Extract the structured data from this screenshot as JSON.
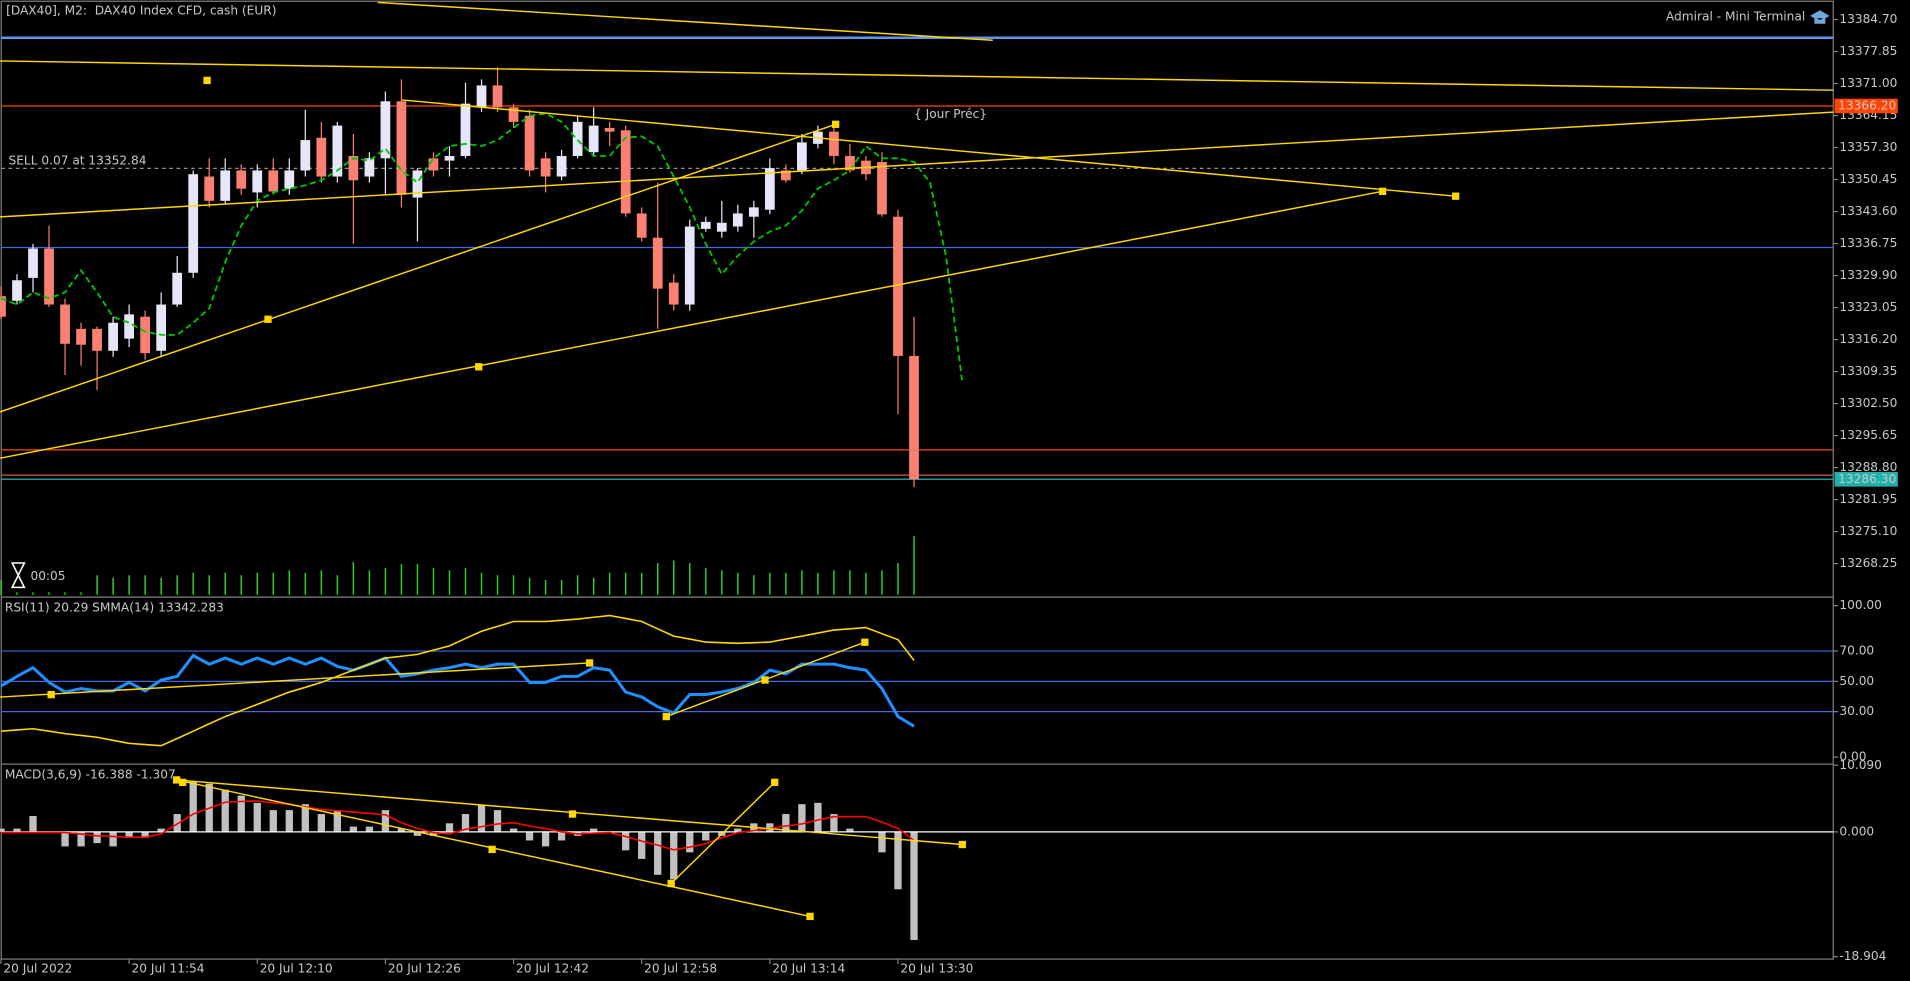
{
  "chart_data": [
    {
      "type": "candlestick",
      "title": "[DAX40], M2:  DAX40 Index CFD, cash (EUR)",
      "subtitle": "Admiral - Mini Terminal",
      "timer": "00:05",
      "categories": [
        "20 Jul 2022",
        null,
        null,
        null,
        null,
        null,
        null,
        null,
        "20 Jul 11:54",
        null,
        null,
        null,
        null,
        null,
        null,
        null,
        "20 Jul 12:10",
        null,
        null,
        null,
        null,
        null,
        null,
        null,
        "20 Jul 12:26",
        null,
        null,
        null,
        null,
        null,
        null,
        null,
        "20 Jul 12:42",
        null,
        null,
        null,
        null,
        null,
        null,
        null,
        "20 Jul 12:58",
        null,
        null,
        null,
        null,
        null,
        null,
        null,
        "20 Jul 13:14",
        null,
        null,
        null,
        null,
        null,
        null,
        null,
        "20 Jul 13:30",
        null,
        null,
        null,
        null
      ],
      "open": [
        13325.5,
        13324.5,
        13329.4,
        13335.7,
        13323.7,
        13318.5,
        13318.5,
        13313.8,
        13316.4,
        13321.1,
        13313.8,
        13323.7,
        13330.5,
        13351.1,
        13345.9,
        13352.4,
        13347.7,
        13352.4,
        13348.5,
        13352.4,
        13359.4,
        13351.1,
        13355.5,
        13351.1,
        13355.0,
        13367.2,
        13346.6,
        13355.0,
        13354.5,
        13355.5,
        13365.9,
        13370.6,
        13365.9,
        13364.1,
        13355.0,
        13351.1,
        13355.5,
        13356.3,
        13361.5,
        13361.0,
        13343.2,
        13338.0,
        13328.4,
        13323.7,
        13339.9,
        13339.3,
        13340.4,
        13342.5,
        13344.0,
        13352.4,
        13352.4,
        13358.1,
        13360.7,
        13355.5,
        13354.5,
        13354.2,
        13342.5,
        13312.7,
        null,
        null,
        null
      ],
      "high": [
        13327.6,
        13330.2,
        13336.7,
        13340.6,
        13325.0,
        13319.8,
        13319.0,
        13321.1,
        13323.7,
        13322.4,
        13326.3,
        13334.1,
        13352.4,
        13355.0,
        13355.0,
        13353.7,
        13353.7,
        13355.0,
        13355.0,
        13365.4,
        13362.8,
        13362.8,
        13360.2,
        13356.3,
        13369.3,
        13371.9,
        13352.9,
        13356.3,
        13357.6,
        13371.2,
        13371.9,
        13374.5,
        13366.7,
        13365.4,
        13356.3,
        13356.8,
        13364.1,
        13365.9,
        13362.8,
        13362.0,
        13344.5,
        13349.8,
        13330.2,
        13341.9,
        13342.5,
        13345.9,
        13345.1,
        13345.9,
        13355.0,
        13353.7,
        13360.2,
        13362.0,
        13362.8,
        13358.1,
        13355.5,
        13356.3,
        13344.0,
        13321.1,
        null,
        null,
        null
      ],
      "low": [
        13320.6,
        13323.7,
        13326.3,
        13323.2,
        13308.6,
        13310.6,
        13305.4,
        13312.5,
        13314.6,
        13311.9,
        13312.7,
        13323.2,
        13329.4,
        13344.5,
        13345.1,
        13347.2,
        13344.5,
        13347.2,
        13347.2,
        13351.1,
        13349.8,
        13349.8,
        13336.7,
        13349.8,
        13347.2,
        13344.5,
        13337.2,
        13351.1,
        13351.1,
        13355.0,
        13364.9,
        13364.9,
        13361.5,
        13351.1,
        13347.7,
        13350.3,
        13355.0,
        13355.5,
        13357.6,
        13342.5,
        13337.2,
        13318.5,
        13322.4,
        13322.4,
        13339.3,
        13338.0,
        13339.3,
        13338.0,
        13343.0,
        13349.8,
        13351.6,
        13357.1,
        13353.7,
        13351.9,
        13350.3,
        13342.5,
        13300.2,
        13284.6,
        null,
        null,
        null
      ],
      "close": [
        13321.1,
        13328.9,
        13335.7,
        13323.7,
        13315.3,
        13315.1,
        13313.8,
        13319.8,
        13321.6,
        13313.3,
        13323.7,
        13330.5,
        13351.6,
        13345.9,
        13352.4,
        13348.5,
        13352.4,
        13347.9,
        13352.4,
        13358.9,
        13351.1,
        13362.0,
        13350.3,
        13355.0,
        13367.2,
        13347.2,
        13352.4,
        13352.4,
        13355.5,
        13366.7,
        13370.6,
        13365.9,
        13362.8,
        13352.4,
        13351.1,
        13355.5,
        13362.8,
        13362.0,
        13360.7,
        13343.2,
        13338.0,
        13327.1,
        13323.7,
        13340.4,
        13341.4,
        13341.2,
        13343.2,
        13344.5,
        13352.9,
        13350.3,
        13358.4,
        13360.7,
        13355.5,
        13352.4,
        13351.6,
        13343.0,
        13312.7,
        13286.3,
        null,
        null,
        null
      ],
      "up_color": "#e6e6fa",
      "down_color": "#fa8072",
      "ma": {
        "color": "#00c800",
        "values": [
          13325.0,
          13323.7,
          13326.3,
          13325.0,
          13326.3,
          13331.0,
          13326.3,
          13321.1,
          13319.8,
          13317.9,
          13317.2,
          13317.2,
          13319.8,
          13322.9,
          13332.8,
          13340.6,
          13345.9,
          13347.7,
          13348.5,
          13349.2,
          13350.3,
          13352.4,
          13355.0,
          13354.5,
          13357.1,
          13352.4,
          13349.8,
          13355.0,
          13357.6,
          13358.1,
          13357.6,
          13358.9,
          13361.5,
          13364.1,
          13364.6,
          13362.8,
          13358.9,
          13355.5,
          13355.5,
          13359.4,
          13359.7,
          13357.6,
          13351.1,
          13344.5,
          13336.7,
          13330.2,
          13334.1,
          13337.2,
          13339.3,
          13340.6,
          13343.8,
          13348.5,
          13350.3,
          13352.4,
          13357.6,
          13355.0,
          13355.0,
          13354.2,
          13349.8,
          13334.1,
          13307.5
        ]
      },
      "volume": {
        "color": "#32cd32",
        "values": [
          12,
          12,
          12,
          12,
          12,
          12,
          16,
          14,
          16,
          16,
          14,
          16,
          18,
          16,
          18,
          16,
          18,
          18,
          20,
          18,
          20,
          16,
          27,
          20,
          22,
          25,
          25,
          22,
          20,
          22,
          18,
          16,
          16,
          14,
          12,
          12,
          16,
          14,
          18,
          18,
          18,
          26,
          28,
          26,
          22,
          20,
          18,
          16,
          18,
          18,
          20,
          18,
          20,
          20,
          18,
          20,
          26,
          48,
          null,
          null,
          null
        ]
      },
      "levels": [
        {
          "value": 13380.8,
          "color": "#6495ed"
        },
        {
          "value": 13366.2,
          "color": "#ff4500",
          "label": "13366.20",
          "name": "{ Jour Préc}"
        },
        {
          "value": 13335.9,
          "color": "#4169e1"
        },
        {
          "value": 13292.6,
          "color": "#ff4500"
        },
        {
          "value": 13287.2,
          "color": "#cd5c5c"
        },
        {
          "value": 13286.3,
          "color": "#20b2aa",
          "label": "13286.30"
        }
      ],
      "order": {
        "value": 13352.84,
        "label": "SELL 0.07 at 13352.84",
        "color": "#909090"
      },
      "ylim": [
        13261.6,
        13388.1
      ],
      "yticks": [
        {
          "value": 13384.7,
          "label": "13384.70"
        },
        13377.85,
        {
          "value": 13371.0,
          "label": "13371.00"
        },
        13364.15,
        {
          "value": 13357.3,
          "label": "13357.30"
        },
        13350.45,
        {
          "value": 13343.6,
          "label": "13343.60"
        },
        13336.75,
        {
          "value": 13329.9,
          "label": "13329.90"
        },
        13323.05,
        {
          "value": 13316.2,
          "label": "13316.20"
        },
        13309.35,
        {
          "value": 13302.5,
          "label": "13302.50"
        },
        13295.65,
        {
          "value": 13288.8,
          "label": "13288.80"
        },
        13281.95,
        {
          "value": 13275.1,
          "label": "13275.10"
        },
        13268.25
      ]
    },
    {
      "type": "line",
      "title": "RSI(11) 20.29 SMMA(14) 13342.283",
      "series": [
        {
          "color": "#1e90ff",
          "values": [
            46.9,
            53.3,
            59.0,
            49.3,
            42.9,
            45.3,
            43.7,
            43.7,
            49.3,
            43.7,
            50.9,
            53.3,
            67.0,
            61.4,
            65.4,
            61.4,
            65.4,
            61.4,
            65.4,
            61.4,
            65.4,
            59.8,
            57.4,
            61.4,
            65.4,
            53.3,
            54.9,
            57.4,
            59.0,
            61.4,
            59.0,
            61.4,
            61.4,
            49.3,
            49.3,
            53.3,
            53.3,
            59.0,
            57.4,
            42.9,
            39.7,
            33.2,
            29.2,
            41.3,
            41.3,
            42.9,
            45.3,
            49.3,
            57.4,
            54.9,
            61.4,
            61.4,
            61.4,
            59.0,
            57.4,
            45.3,
            26.8,
            20.3
          ]
        },
        {
          "color": "#ffd700",
          "values": [
            17.1,
            17.9,
            18.7,
            17.1,
            15.5,
            14.3,
            13.1,
            11.1,
            9.1,
            8.3,
            7.5,
            12.3,
            17.1,
            22.0,
            26.8,
            30.8,
            34.8,
            38.9,
            42.9,
            46.1,
            49.3,
            53.4,
            57.4,
            61.4,
            65.4,
            66.6,
            67.8,
            70.6,
            73.4,
            78.3,
            83.1,
            86.3,
            89.5,
            89.5,
            89.5,
            90.3,
            91.1,
            92.3,
            93.5,
            91.5,
            89.5,
            84.7,
            79.9,
            77.9,
            75.9,
            75.5,
            75.1,
            75.5,
            75.9,
            77.9,
            79.9,
            81.9,
            83.9,
            84.7,
            85.5,
            81.5,
            77.5,
            63.8
          ]
        }
      ],
      "levels": [
        30,
        50,
        70
      ],
      "level_color": "#4169e1",
      "ylim": [
        -3,
        104
      ],
      "yticks": [
        {
          "value": 100,
          "label": "100.00"
        },
        {
          "value": 70,
          "label": "70.00"
        },
        {
          "value": 50,
          "label": "50.00"
        },
        {
          "value": 30,
          "label": "30.00"
        },
        {
          "value": 0,
          "label": "0.00"
        }
      ]
    },
    {
      "type": "macd",
      "title": "MACD(3,6,9) -16.388 -1.307",
      "histogram": {
        "color": "#c0c0c0",
        "values": [
          0.5,
          0.5,
          2.4,
          0,
          -2.2,
          -2.2,
          -1.7,
          -2.2,
          -0.9,
          -0.9,
          0.5,
          2.7,
          7.7,
          7.3,
          6.4,
          5.5,
          4.4,
          3.3,
          3.3,
          4.2,
          2.7,
          3.3,
          0.8,
          0.8,
          3.3,
          0.5,
          -0.6,
          -0.6,
          1.3,
          2.7,
          4.0,
          3.3,
          0.5,
          -1.3,
          -2.2,
          -1.3,
          -0.6,
          0.5,
          0,
          -2.8,
          -4.1,
          -6.5,
          -7.2,
          -3.1,
          -1.3,
          -0.6,
          0.5,
          1.3,
          1.3,
          2.7,
          4.2,
          4.4,
          2.7,
          0.5,
          0,
          -3.1,
          -8.7,
          -16.388
        ]
      },
      "signal": {
        "color": "#ff0000",
        "values": [
          -0.1,
          -0.1,
          -0.1,
          -0.1,
          -0.1,
          -0.3,
          -0.6,
          -0.7,
          -0.8,
          -0.8,
          -0.3,
          1.2,
          2.7,
          3.6,
          4.5,
          4.6,
          4.7,
          4.4,
          4.2,
          3.8,
          3.4,
          3.2,
          3.0,
          2.8,
          2.6,
          1.4,
          0.5,
          -0.1,
          -0.3,
          0.4,
          0.8,
          1.2,
          1.4,
          0.9,
          0.5,
          0.0,
          -0.3,
          -0.2,
          -0.1,
          -0.7,
          -1.4,
          -2.0,
          -2.7,
          -2.3,
          -1.8,
          -0.9,
          -0.1,
          0.2,
          0.5,
          0.9,
          1.2,
          1.8,
          2.3,
          2.3,
          2.3,
          1.5,
          0.5,
          -1.307
        ]
      },
      "ylim": [
        -18.904,
        10.09
      ],
      "yticks": [
        {
          "value": 10.09,
          "label": "10.090"
        },
        {
          "value": 0,
          "label": "0.000"
        },
        {
          "value": -18.904,
          "label": "-18.904"
        }
      ]
    }
  ]
}
